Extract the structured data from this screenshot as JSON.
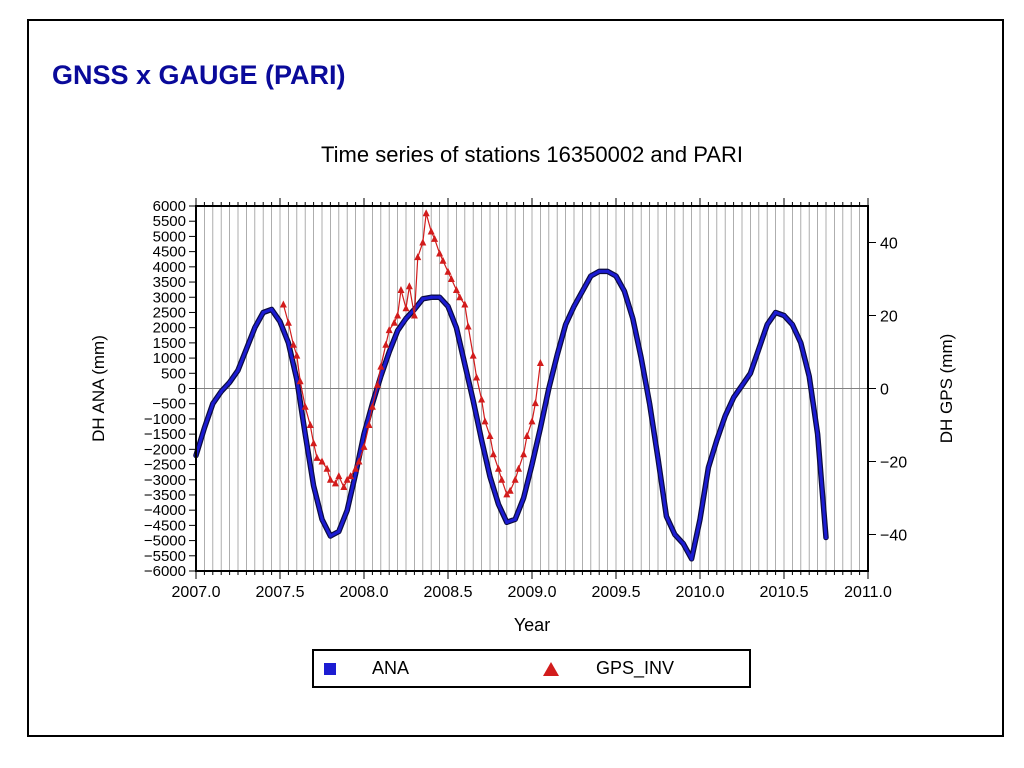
{
  "slide": {
    "title": "GNSS x GAUGE (PARI)"
  },
  "chart_data": {
    "type": "line",
    "title": "Time series of stations 16350002 and PARI",
    "xlabel": "Year",
    "ylabel": "DH ANA (mm)",
    "y2label": "DH GPS (mm)",
    "xlim": [
      2007.0,
      2011.0
    ],
    "ylim": [
      -6000,
      6000
    ],
    "y2lim": [
      -50,
      50
    ],
    "x_ticks": [
      2007.0,
      2007.5,
      2008.0,
      2008.5,
      2009.0,
      2009.5,
      2010.0,
      2010.5,
      2011.0
    ],
    "x_tick_labels": [
      "2007.0",
      "2007.5",
      "2008.0",
      "2008.5",
      "2009.0",
      "2009.5",
      "2010.0",
      "2010.5",
      "2011.0"
    ],
    "y_ticks": [
      -6000,
      -5500,
      -5000,
      -4500,
      -4000,
      -3500,
      -3000,
      -2500,
      -2000,
      -1500,
      -1000,
      -500,
      0,
      500,
      1000,
      1500,
      2000,
      2500,
      3000,
      3500,
      4000,
      4500,
      5000,
      5500,
      6000
    ],
    "y_tick_labels": [
      "−6000",
      "−5500",
      "−5000",
      "−4500",
      "−4000",
      "−3500",
      "−3000",
      "−2500",
      "−2000",
      "−1500",
      "−1000",
      "−500",
      "0",
      "500",
      "1000",
      "1500",
      "2000",
      "2500",
      "3000",
      "3500",
      "4000",
      "4500",
      "5000",
      "5500",
      "6000"
    ],
    "y2_ticks": [
      -40,
      -20,
      0,
      20,
      40
    ],
    "y2_tick_labels": [
      "−40",
      "−20",
      "0",
      "20",
      "40"
    ],
    "grid": "vertical lines every 0.05 year",
    "zero_line": true,
    "legend": "bottom-center",
    "series": [
      {
        "name": "ANA",
        "axis": "left",
        "color": "#1c1cd2",
        "marker": "square",
        "x": [
          2007.0,
          2007.05,
          2007.1,
          2007.15,
          2007.2,
          2007.25,
          2007.3,
          2007.35,
          2007.4,
          2007.45,
          2007.5,
          2007.55,
          2007.6,
          2007.65,
          2007.7,
          2007.75,
          2007.8,
          2007.85,
          2007.9,
          2007.95,
          2008.0,
          2008.05,
          2008.1,
          2008.15,
          2008.2,
          2008.25,
          2008.3,
          2008.35,
          2008.4,
          2008.45,
          2008.5,
          2008.55,
          2008.6,
          2008.65,
          2008.7,
          2008.75,
          2008.8,
          2008.85,
          2008.9,
          2008.95,
          2009.0,
          2009.05,
          2009.1,
          2009.15,
          2009.2,
          2009.25,
          2009.3,
          2009.35,
          2009.4,
          2009.45,
          2009.5,
          2009.55,
          2009.6,
          2009.65,
          2009.7,
          2009.75,
          2009.8,
          2009.85,
          2009.9,
          2009.95,
          2010.0,
          2010.05,
          2010.1,
          2010.15,
          2010.2,
          2010.25,
          2010.3,
          2010.35,
          2010.4,
          2010.45,
          2010.5,
          2010.55,
          2010.6,
          2010.65,
          2010.7,
          2010.75
        ],
        "y": [
          -2200,
          -1300,
          -500,
          -100,
          200,
          600,
          1300,
          2000,
          2500,
          2600,
          2200,
          1500,
          300,
          -1500,
          -3200,
          -4300,
          -4850,
          -4700,
          -4000,
          -2800,
          -1500,
          -500,
          400,
          1200,
          1900,
          2300,
          2600,
          2950,
          3000,
          3000,
          2700,
          2000,
          800,
          -400,
          -1700,
          -2900,
          -3800,
          -4400,
          -4300,
          -3600,
          -2500,
          -1300,
          0,
          1100,
          2100,
          2700,
          3200,
          3700,
          3850,
          3850,
          3700,
          3200,
          2300,
          1000,
          -500,
          -2300,
          -4200,
          -4800,
          -5100,
          -5600,
          -4300,
          -2600,
          -1700,
          -900,
          -300,
          100,
          500,
          1300,
          2100,
          2500,
          2400,
          2100,
          1500,
          400,
          -1500,
          -4900
        ]
      },
      {
        "name": "GPS_INV",
        "axis": "right",
        "color": "#d21c1c",
        "marker": "triangle",
        "x": [
          2007.52,
          2007.55,
          2007.58,
          2007.6,
          2007.62,
          2007.65,
          2007.68,
          2007.7,
          2007.72,
          2007.75,
          2007.78,
          2007.8,
          2007.83,
          2007.85,
          2007.88,
          2007.9,
          2007.92,
          2007.95,
          2007.97,
          2008.0,
          2008.03,
          2008.05,
          2008.08,
          2008.1,
          2008.13,
          2008.15,
          2008.18,
          2008.2,
          2008.22,
          2008.25,
          2008.27,
          2008.3,
          2008.32,
          2008.35,
          2008.37,
          2008.4,
          2008.42,
          2008.45,
          2008.47,
          2008.5,
          2008.52,
          2008.55,
          2008.57,
          2008.6,
          2008.62,
          2008.65,
          2008.67,
          2008.7,
          2008.72,
          2008.75,
          2008.77,
          2008.8,
          2008.82,
          2008.85,
          2008.87,
          2008.9,
          2008.92,
          2008.95,
          2008.97,
          2009.0,
          2009.02,
          2009.05
        ],
        "y": [
          23,
          18,
          12,
          9,
          2,
          -5,
          -10,
          -15,
          -19,
          -20,
          -22,
          -25,
          -26,
          -24,
          -27,
          -25,
          -24,
          -22,
          -20,
          -16,
          -10,
          -5,
          1,
          6,
          12,
          16,
          18,
          20,
          27,
          22,
          28,
          20,
          36,
          40,
          48,
          43,
          41,
          37,
          35,
          32,
          30,
          27,
          25,
          23,
          17,
          9,
          3,
          -3,
          -9,
          -13,
          -18,
          -22,
          -25,
          -29,
          -28,
          -25,
          -22,
          -18,
          -13,
          -9,
          -4,
          7
        ]
      }
    ]
  }
}
